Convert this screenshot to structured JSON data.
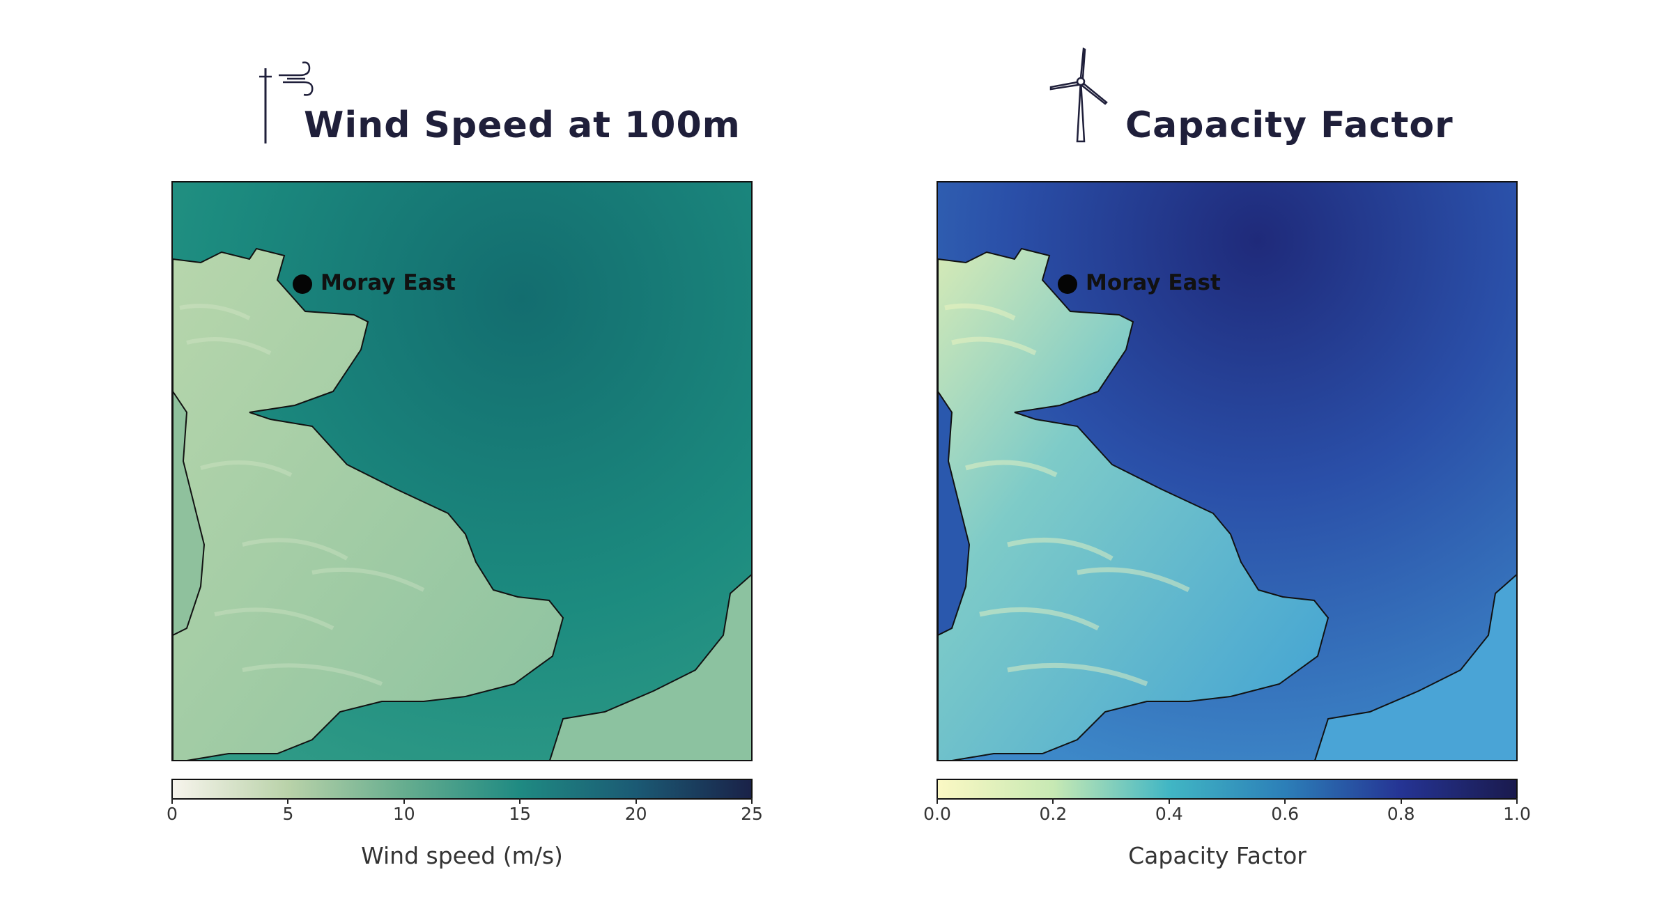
{
  "left_panel": {
    "title": "Wind Speed at 100m",
    "icon": "wind-mast-icon",
    "marker_label": "Moray East",
    "colorbar": {
      "label": "Wind speed  (m/s)",
      "ticks": [
        "0",
        "5",
        "10",
        "15",
        "20",
        "25"
      ],
      "colors": [
        "#f7f4ec",
        "#b9d2a9",
        "#66ad8f",
        "#1f8a82",
        "#1b5a74",
        "#1a2248"
      ]
    },
    "palette": {
      "sea": "#1c8b7f",
      "sea_dark": "#136d6f",
      "land": "#8cc2a0",
      "land_light": "#b7d6ac"
    }
  },
  "right_panel": {
    "title": "Capacity Factor",
    "icon": "wind-turbine-icon",
    "marker_label": "Moray East",
    "colorbar": {
      "label": "Capacity Factor",
      "ticks": [
        "0.0",
        "0.2",
        "0.4",
        "0.6",
        "0.8",
        "1.0"
      ],
      "colors": [
        "#fbf8c4",
        "#c7e9b4",
        "#41b6c4",
        "#2c7fb8",
        "#253494",
        "#1a1a4d"
      ]
    },
    "palette": {
      "sea": "#2c5fb0",
      "sea_dark": "#23368c",
      "land": "#46a6d6",
      "land_light": "#cfe9b8"
    }
  }
}
